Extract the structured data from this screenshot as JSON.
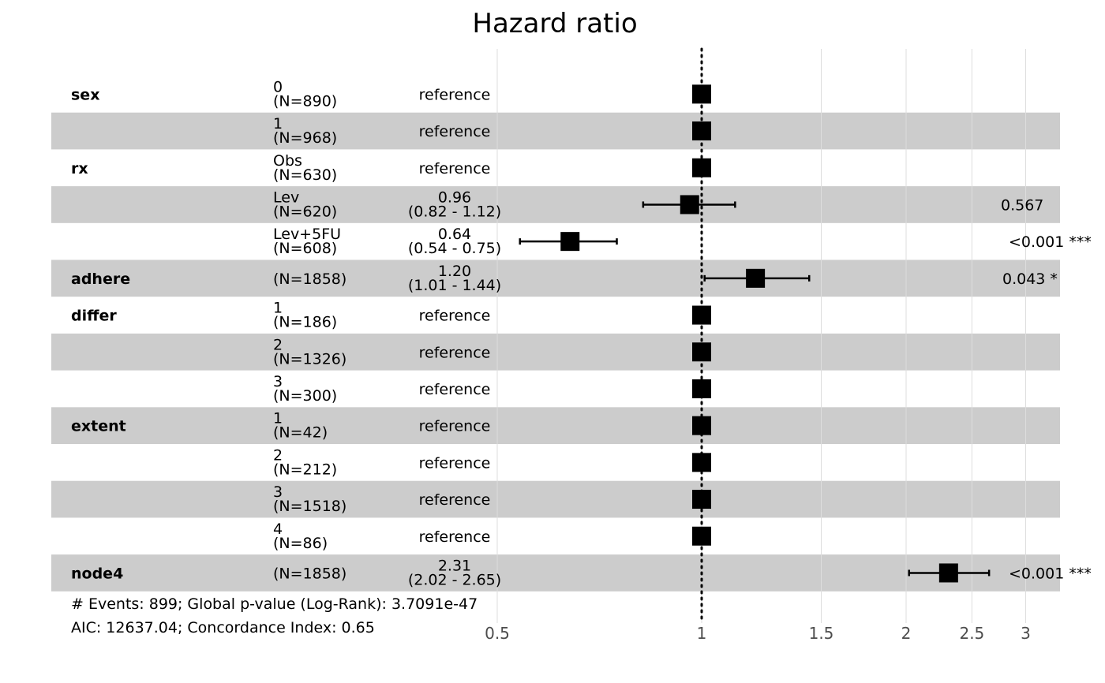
{
  "chart_data": {
    "type": "forest",
    "title": "Hazard ratio",
    "x_scale": "log",
    "xlim": [
      0.5,
      3.2
    ],
    "x_ticks": [
      "0.5",
      "1",
      "1.5",
      "2",
      "2.5",
      "3"
    ],
    "reference_line": 1,
    "rows": [
      {
        "variable": "sex",
        "level": "0",
        "n": "(N=890)",
        "hr": 1,
        "est": "reference",
        "ci": "",
        "p": "",
        "shaded": false
      },
      {
        "variable": "",
        "level": "1",
        "n": "(N=968)",
        "hr": 1,
        "est": "reference",
        "ci": "",
        "p": "",
        "shaded": true
      },
      {
        "variable": "rx",
        "level": "Obs",
        "n": "(N=630)",
        "hr": 1,
        "est": "reference",
        "ci": "",
        "p": "",
        "shaded": false
      },
      {
        "variable": "",
        "level": "Lev",
        "n": "(N=620)",
        "hr": 0.96,
        "lo": 0.82,
        "hi": 1.12,
        "est": "0.96",
        "ci": "(0.82 - 1.12)",
        "p": "0.567",
        "shaded": true
      },
      {
        "variable": "",
        "level": "Lev+5FU",
        "n": "(N=608)",
        "hr": 0.64,
        "lo": 0.54,
        "hi": 0.75,
        "est": "0.64",
        "ci": "(0.54 - 0.75)",
        "p": "<0.001 ***",
        "shaded": false
      },
      {
        "variable": "adhere",
        "level": "",
        "n": "(N=1858)",
        "hr": 1.2,
        "lo": 1.01,
        "hi": 1.44,
        "est": "1.20",
        "ci": "(1.01 - 1.44)",
        "p": "0.043 *",
        "shaded": true
      },
      {
        "variable": "differ",
        "level": "1",
        "n": "(N=186)",
        "hr": 1,
        "est": "reference",
        "ci": "",
        "p": "",
        "shaded": false
      },
      {
        "variable": "",
        "level": "2",
        "n": "(N=1326)",
        "hr": 1,
        "est": "reference",
        "ci": "",
        "p": "",
        "shaded": true
      },
      {
        "variable": "",
        "level": "3",
        "n": "(N=300)",
        "hr": 1,
        "est": "reference",
        "ci": "",
        "p": "",
        "shaded": false
      },
      {
        "variable": "extent",
        "level": "1",
        "n": "(N=42)",
        "hr": 1,
        "est": "reference",
        "ci": "",
        "p": "",
        "shaded": true
      },
      {
        "variable": "",
        "level": "2",
        "n": "(N=212)",
        "hr": 1,
        "est": "reference",
        "ci": "",
        "p": "",
        "shaded": false
      },
      {
        "variable": "",
        "level": "3",
        "n": "(N=1518)",
        "hr": 1,
        "est": "reference",
        "ci": "",
        "p": "",
        "shaded": true
      },
      {
        "variable": "",
        "level": "4",
        "n": "(N=86)",
        "hr": 1,
        "est": "reference",
        "ci": "",
        "p": "",
        "shaded": false
      },
      {
        "variable": "node4",
        "level": "",
        "n": "(N=1858)",
        "hr": 2.31,
        "lo": 2.02,
        "hi": 2.65,
        "est": "2.31",
        "ci": "(2.02 - 2.65)",
        "p": "<0.001 ***",
        "shaded": true
      }
    ],
    "footnotes": [
      "# Events: 899; Global p-value (Log-Rank): 3.7091e-47",
      "AIC: 12637.04; Concordance Index: 0.65"
    ],
    "colors": {
      "stripe": "#cccccc",
      "marker": "#000000",
      "grid": "#dddddd"
    }
  }
}
